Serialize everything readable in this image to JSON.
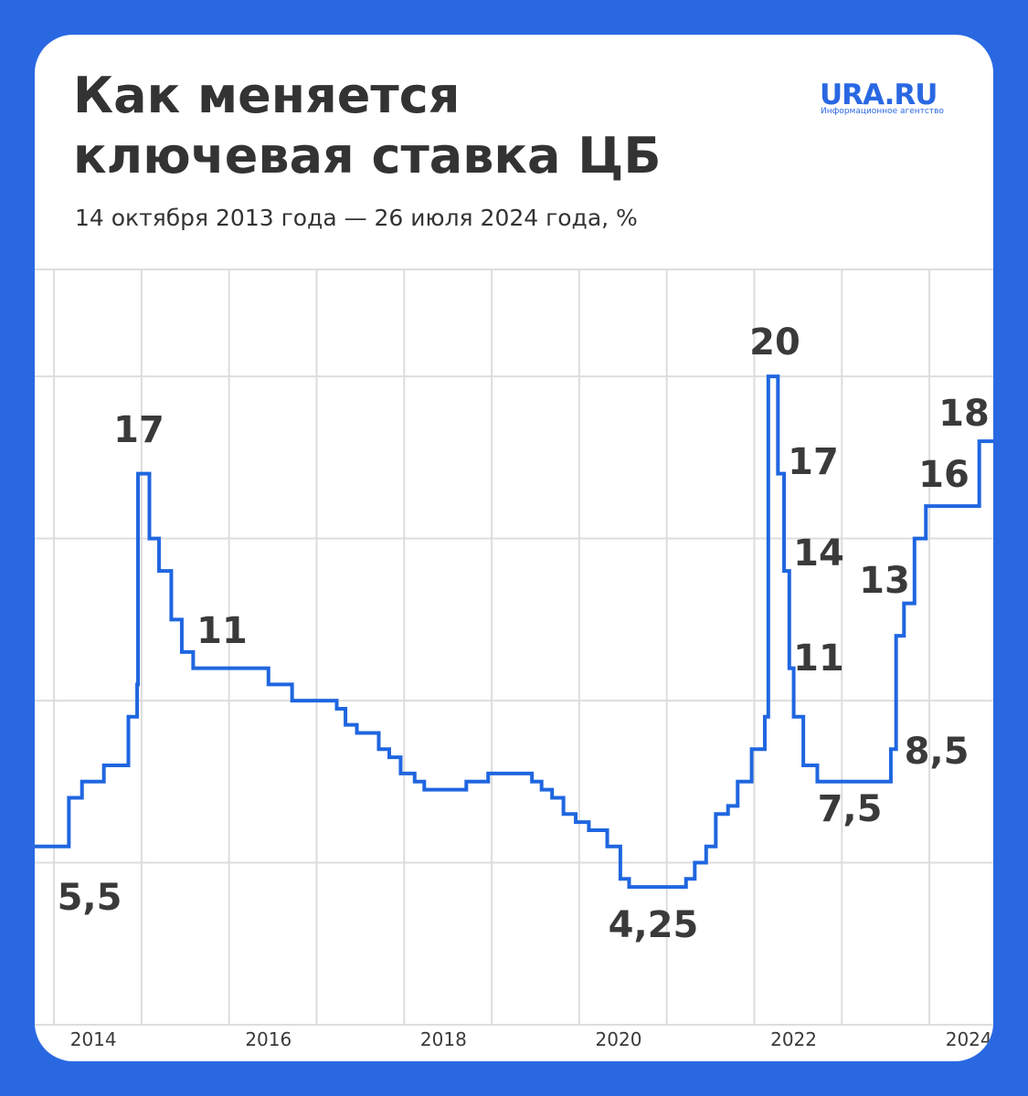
{
  "header": {
    "title": "Как меняется ключевая ставка ЦБ",
    "subtitle": "14 октября 2013 года — 26 июля 2024 года, %"
  },
  "logo": {
    "name": "URA.RU",
    "tagline": "Информационное агентство"
  },
  "chart_data": {
    "type": "step",
    "color": "#1f66e0",
    "x": [
      2013.78,
      2014.17,
      2014.32,
      2014.57,
      2014.85,
      2014.95,
      2014.96,
      2015.09,
      2015.2,
      2015.34,
      2015.46,
      2015.59,
      2016.45,
      2016.72,
      2017.23,
      2017.33,
      2017.46,
      2017.71,
      2017.83,
      2017.96,
      2018.12,
      2018.23,
      2018.71,
      2018.96,
      2019.46,
      2019.57,
      2019.69,
      2019.82,
      2019.96,
      2020.11,
      2020.32,
      2020.47,
      2020.57,
      2021.22,
      2021.32,
      2021.45,
      2021.56,
      2021.7,
      2021.81,
      2021.97,
      2022.12,
      2022.16,
      2022.27,
      2022.34,
      2022.4,
      2022.45,
      2022.56,
      2022.72,
      2023.56,
      2023.62,
      2023.71,
      2023.83,
      2023.96,
      2024.57
    ],
    "values": [
      5.5,
      7,
      7.5,
      8,
      9.5,
      10.5,
      17,
      15,
      14,
      12.5,
      11.5,
      11,
      10.5,
      10,
      9.75,
      9.25,
      9,
      8.5,
      8.25,
      7.75,
      7.5,
      7.25,
      7.5,
      7.75,
      7.5,
      7.25,
      7,
      6.5,
      6.25,
      6,
      5.5,
      4.5,
      4.25,
      4.5,
      5,
      5.5,
      6.5,
      6.75,
      7.5,
      8.5,
      9.5,
      20,
      17,
      14,
      11,
      9.5,
      8,
      7.5,
      8.5,
      12,
      13,
      15,
      16,
      18
    ],
    "value_labels": [
      "5,5",
      null,
      null,
      null,
      null,
      null,
      "17",
      null,
      null,
      null,
      null,
      "11",
      null,
      null,
      null,
      null,
      null,
      null,
      null,
      null,
      null,
      null,
      null,
      null,
      null,
      null,
      null,
      null,
      null,
      null,
      null,
      null,
      "4,25",
      null,
      null,
      null,
      null,
      null,
      null,
      null,
      null,
      "20",
      "17",
      "14",
      "11",
      null,
      null,
      "7,5",
      "8,5",
      null,
      "13",
      null,
      "16",
      "18"
    ],
    "xlim": [
      2013.78,
      2024.73
    ],
    "xticks": [
      2014,
      2015,
      2016,
      2017,
      2018,
      2019,
      2020,
      2021,
      2022,
      2023,
      2024
    ],
    "xtick_label_step": 2,
    "ylim": [
      0,
      23.3
    ],
    "yticks": [
      0,
      5,
      10,
      15,
      20
    ],
    "grid": true
  }
}
